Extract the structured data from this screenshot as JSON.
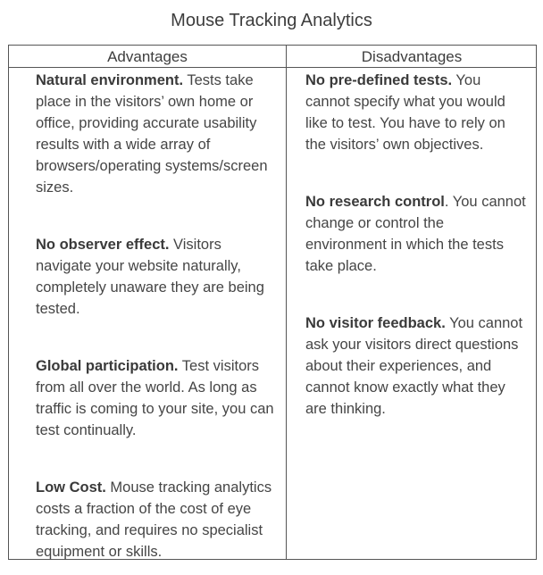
{
  "title": "Mouse Tracking Analytics",
  "headers": {
    "advantages": "Advantages",
    "disadvantages": "Disadvantages"
  },
  "advantages": [
    {
      "heading": "Natural environment.",
      "text": " Tests take place in the visitors’ own home or office, providing accurate usability results with a wide array of browsers/operating systems/screen sizes."
    },
    {
      "heading": "No observer effect.",
      "text": " Visitors navigate your website naturally, completely unaware they are being tested."
    },
    {
      "heading": "Global participation.",
      "text": " Test visitors from all over the world. As long as traffic is coming to your site, you can test continually."
    },
    {
      "heading": "Low Cost.",
      "text": " Mouse tracking analytics costs a fraction of the cost of eye tracking, and requires no specialist equipment or skills."
    }
  ],
  "disadvantages": [
    {
      "heading": "No pre-defined tests.",
      "text": " You cannot specify what you would like to test. You have to rely on the visitors’ own objectives."
    },
    {
      "heading": "No research control",
      "text": ". You cannot change or control the environment in which the tests take place."
    },
    {
      "heading": "No visitor feedback.",
      "text": " You cannot ask your visitors direct questions about their experiences, and cannot know exactly what they are thinking."
    }
  ]
}
